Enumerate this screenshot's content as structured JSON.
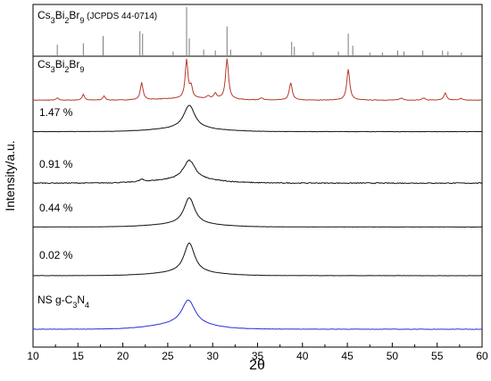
{
  "chart_data": {
    "type": "line",
    "xlabel": "2θ",
    "ylabel": "Intensity/a.u.",
    "xlim": [
      10,
      60
    ],
    "xticks": [
      10,
      15,
      20,
      25,
      30,
      35,
      40,
      45,
      50,
      55,
      60
    ],
    "grid": false,
    "colors": {
      "reference": "#7a7a7a",
      "red": "#b63a2a",
      "black": "#111111",
      "blue": "#2a2fd6"
    },
    "reference_panel": {
      "label_parts": [
        {
          "t": "Cs",
          "s": "n"
        },
        {
          "t": "3",
          "s": "sub"
        },
        {
          "t": "Bi",
          "s": "n"
        },
        {
          "t": "2",
          "s": "sub"
        },
        {
          "t": "Br",
          "s": "n"
        },
        {
          "t": "9",
          "s": "sub"
        },
        {
          "t": " (JCPDS 44-0714)",
          "s": "small"
        }
      ],
      "peaks": [
        {
          "x": 12.7,
          "h": 0.22
        },
        {
          "x": 15.6,
          "h": 0.25
        },
        {
          "x": 17.8,
          "h": 0.4
        },
        {
          "x": 21.9,
          "h": 0.5
        },
        {
          "x": 22.2,
          "h": 0.45
        },
        {
          "x": 25.6,
          "h": 0.08
        },
        {
          "x": 27.1,
          "h": 1.0
        },
        {
          "x": 27.4,
          "h": 0.35
        },
        {
          "x": 29.0,
          "h": 0.12
        },
        {
          "x": 30.3,
          "h": 0.1
        },
        {
          "x": 31.6,
          "h": 0.6
        },
        {
          "x": 32.0,
          "h": 0.12
        },
        {
          "x": 35.4,
          "h": 0.07
        },
        {
          "x": 38.8,
          "h": 0.28
        },
        {
          "x": 39.1,
          "h": 0.18
        },
        {
          "x": 41.2,
          "h": 0.07
        },
        {
          "x": 44.0,
          "h": 0.08
        },
        {
          "x": 45.1,
          "h": 0.45
        },
        {
          "x": 45.6,
          "h": 0.2
        },
        {
          "x": 47.5,
          "h": 0.06
        },
        {
          "x": 48.9,
          "h": 0.06
        },
        {
          "x": 50.6,
          "h": 0.1
        },
        {
          "x": 51.3,
          "h": 0.08
        },
        {
          "x": 53.4,
          "h": 0.1
        },
        {
          "x": 55.6,
          "h": 0.1
        },
        {
          "x": 56.2,
          "h": 0.08
        },
        {
          "x": 57.7,
          "h": 0.06
        }
      ]
    },
    "series": [
      {
        "name": "Cs3Bi2Br9",
        "label_parts": [
          {
            "t": "Cs",
            "s": "n"
          },
          {
            "t": "3",
            "s": "sub"
          },
          {
            "t": "Bi",
            "s": "n"
          },
          {
            "t": "2",
            "s": "sub"
          },
          {
            "t": "Br",
            "s": "n"
          },
          {
            "t": "9",
            "s": "sub"
          }
        ],
        "color": "red",
        "baseline": 0.12,
        "noise": 0.012,
        "hump": {
          "c": 27.5,
          "w": 4.5,
          "h": 0.04
        },
        "peaks": [
          {
            "x": 12.7,
            "h": 0.05,
            "w": 0.15
          },
          {
            "x": 15.6,
            "h": 0.14,
            "w": 0.15
          },
          {
            "x": 17.9,
            "h": 0.1,
            "w": 0.15
          },
          {
            "x": 22.1,
            "h": 0.4,
            "w": 0.18
          },
          {
            "x": 27.1,
            "h": 0.9,
            "w": 0.18
          },
          {
            "x": 27.6,
            "h": 0.25,
            "w": 0.18
          },
          {
            "x": 29.5,
            "h": 0.06,
            "w": 0.2
          },
          {
            "x": 30.3,
            "h": 0.12,
            "w": 0.18
          },
          {
            "x": 31.6,
            "h": 0.95,
            "w": 0.2
          },
          {
            "x": 35.4,
            "h": 0.05,
            "w": 0.2
          },
          {
            "x": 38.7,
            "h": 0.4,
            "w": 0.2
          },
          {
            "x": 45.1,
            "h": 0.72,
            "w": 0.2
          },
          {
            "x": 51.0,
            "h": 0.05,
            "w": 0.2
          },
          {
            "x": 53.5,
            "h": 0.05,
            "w": 0.2
          },
          {
            "x": 55.9,
            "h": 0.16,
            "w": 0.18
          },
          {
            "x": 57.6,
            "h": 0.04,
            "w": 0.2
          }
        ]
      },
      {
        "name": "1.47 %",
        "label_parts": [
          {
            "t": "1.47 %",
            "s": "n"
          }
        ],
        "color": "black",
        "baseline": 0.14,
        "noise": 0.008,
        "hump": {
          "c": 27.0,
          "w": 5.0,
          "h": 0.08
        },
        "peaks": [
          {
            "x": 27.4,
            "h": 0.68,
            "w": 0.75
          }
        ]
      },
      {
        "name": "0.91 %",
        "label_parts": [
          {
            "t": "0.91 %",
            "s": "n"
          }
        ],
        "color": "black",
        "baseline": 0.12,
        "noise": 0.025,
        "hump": {
          "c": 27.0,
          "w": 5.0,
          "h": 0.09
        },
        "peaks": [
          {
            "x": 27.4,
            "h": 0.55,
            "w": 0.8
          },
          {
            "x": 22.1,
            "h": 0.06,
            "w": 0.3
          }
        ]
      },
      {
        "name": "0.44 %",
        "label_parts": [
          {
            "t": "0.44 %",
            "s": "n"
          }
        ],
        "color": "black",
        "baseline": 0.14,
        "noise": 0.006,
        "hump": {
          "c": 27.0,
          "w": 5.0,
          "h": 0.07
        },
        "peaks": [
          {
            "x": 27.4,
            "h": 0.75,
            "w": 0.72
          }
        ]
      },
      {
        "name": "0.02 %",
        "label_parts": [
          {
            "t": "0.02 %",
            "s": "n"
          }
        ],
        "color": "black",
        "baseline": 0.14,
        "noise": 0.006,
        "hump": {
          "c": 27.0,
          "w": 5.0,
          "h": 0.07
        },
        "peaks": [
          {
            "x": 27.4,
            "h": 0.78,
            "w": 0.72
          }
        ]
      },
      {
        "name": "NS g-C3N4",
        "label_parts": [
          {
            "t": "NS g-C",
            "s": "n"
          },
          {
            "t": "3",
            "s": "sub"
          },
          {
            "t": "N",
            "s": "n"
          },
          {
            "t": "4",
            "s": "sub"
          }
        ],
        "color": "blue",
        "baseline": 0.14,
        "noise": 0.008,
        "hump": {
          "c": 26.5,
          "w": 4.5,
          "h": 0.1
        },
        "peaks": [
          {
            "x": 27.3,
            "h": 0.56,
            "w": 0.9
          }
        ]
      }
    ]
  }
}
